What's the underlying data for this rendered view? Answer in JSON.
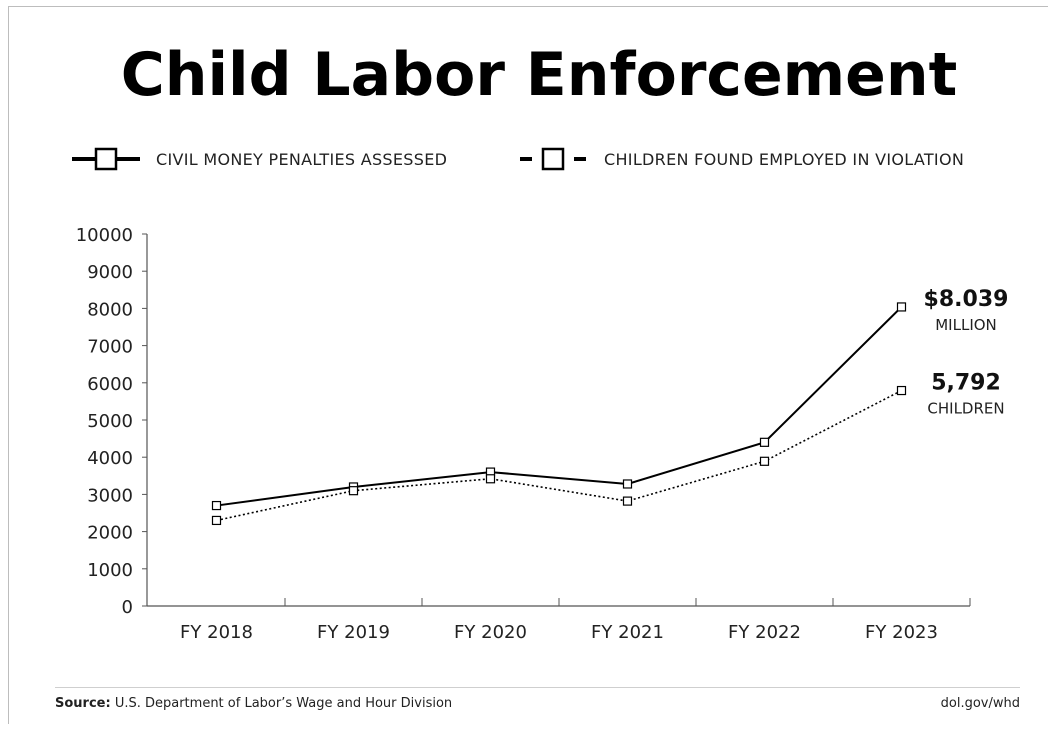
{
  "header": {
    "title": "Child Labor Enforcement"
  },
  "legend": {
    "series1_label": "CIVIL MONEY PENALTIES ASSESSED",
    "series2_label": "CHILDREN FOUND EMPLOYED IN VIOLATION"
  },
  "chart_data": {
    "type": "line",
    "title": "Child Labor Enforcement",
    "xlabel": "",
    "ylabel": "",
    "categories": [
      "FY 2018",
      "FY 2019",
      "FY 2020",
      "FY 2021",
      "FY 2022",
      "FY 2023"
    ],
    "ylim": [
      0,
      10000
    ],
    "yticks": [
      "0",
      "1000",
      "2000",
      "3000",
      "4000",
      "5000",
      "6000",
      "7000",
      "8000",
      "9000",
      "10000"
    ],
    "grid": false,
    "legend_position": "top",
    "series": [
      {
        "name": "CIVIL MONEY PENALTIES ASSESSED",
        "line_style": "solid",
        "values": [
          2700,
          3200,
          3600,
          3280,
          4400,
          8039
        ]
      },
      {
        "name": "CHILDREN FOUND EMPLOYED IN VIOLATION",
        "line_style": "dotted",
        "values": [
          2300,
          3100,
          3420,
          2820,
          3890,
          5792
        ]
      }
    ],
    "annotations": [
      {
        "series": 0,
        "value": "$8.039",
        "sub": "MILLION"
      },
      {
        "series": 1,
        "value": "5,792",
        "sub": "CHILDREN"
      }
    ]
  },
  "footer": {
    "source_label": "Source:",
    "source_text": " U.S. Department of Labor’s Wage and Hour Division",
    "url": "dol.gov/whd"
  }
}
